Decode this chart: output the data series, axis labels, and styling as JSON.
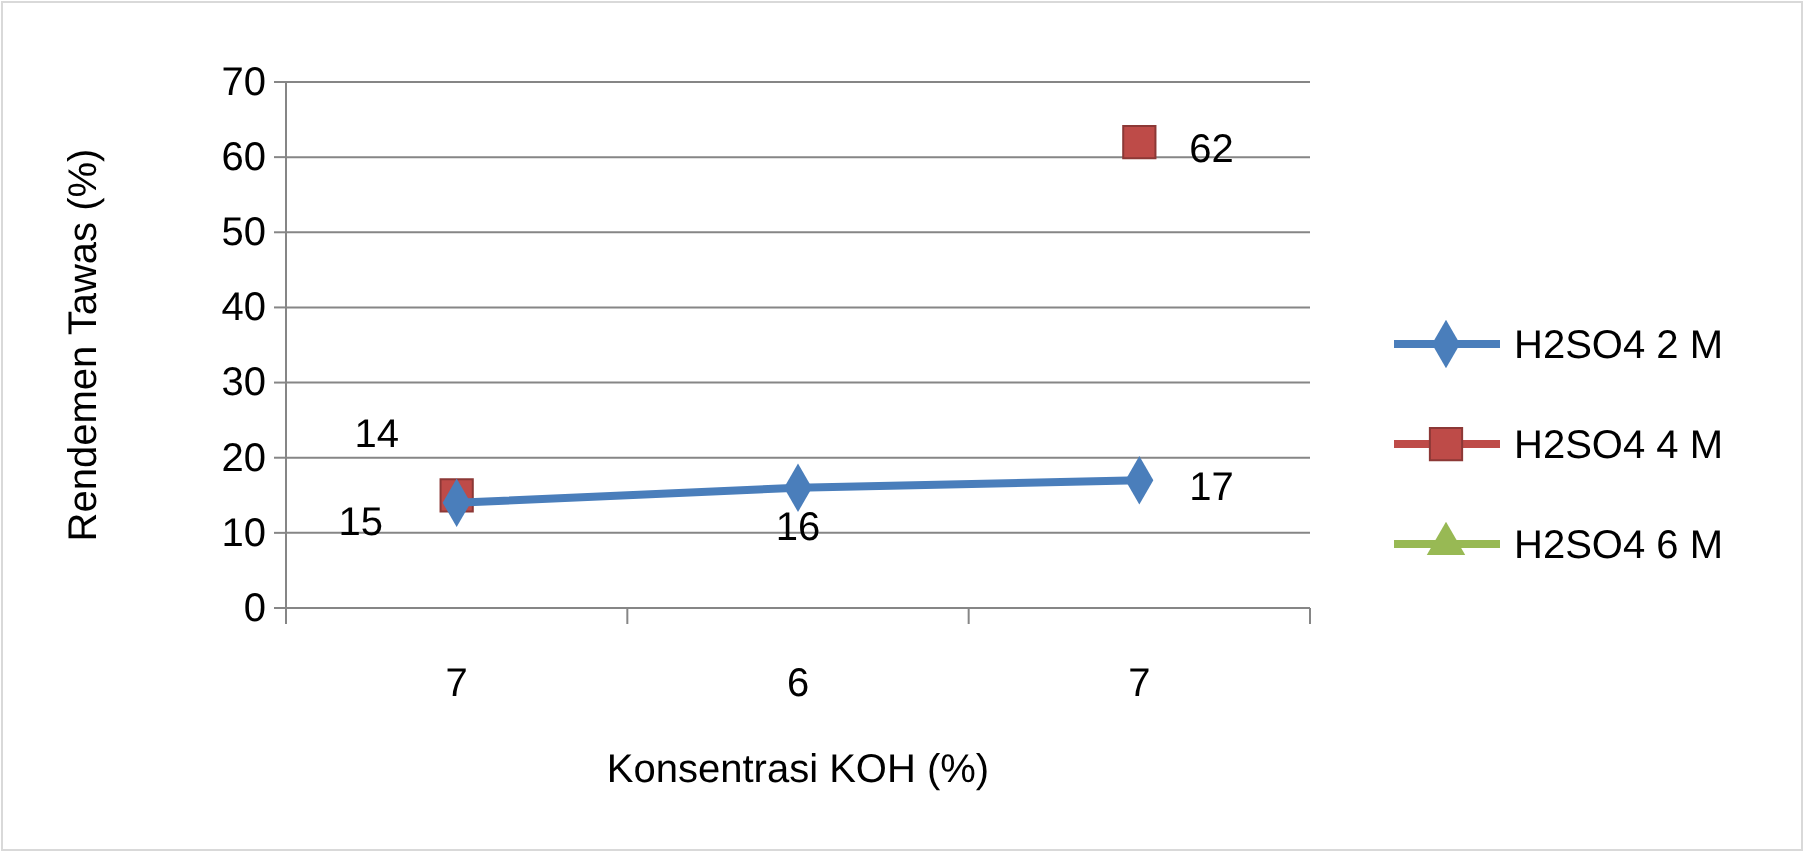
{
  "chart_data": {
    "type": "line",
    "xlabel": "Konsentrasi KOH (%)",
    "ylabel": "Rendemen Tawas (%)",
    "categories": [
      "7",
      "6",
      "7"
    ],
    "ylim": [
      0,
      70
    ],
    "yticks": [
      0,
      10,
      20,
      30,
      40,
      50,
      60,
      70
    ],
    "grid": "y",
    "legend": "right",
    "data_labels": true,
    "series": [
      {
        "name": "H2SO4 2 M",
        "color": "#4a7ebb",
        "marker": "diamond",
        "values": [
          14,
          16,
          17
        ]
      },
      {
        "name": "H2SO4 4 M",
        "type": "scatter",
        "color": "#be4b48",
        "marker": "square",
        "values": [
          15,
          null,
          62
        ]
      },
      {
        "name": "H2SO4 6 M",
        "color": "#98b954",
        "marker": "triangle",
        "values": [
          null,
          null,
          null
        ]
      }
    ]
  }
}
